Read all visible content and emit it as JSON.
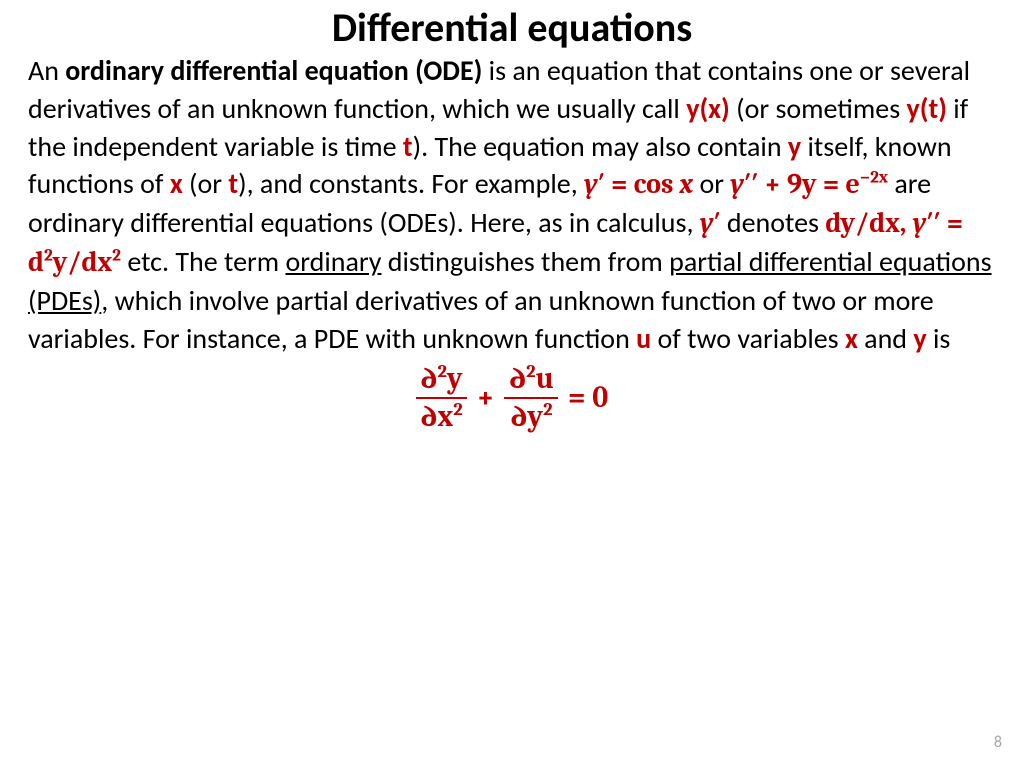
{
  "colors": {
    "red": "#c00000",
    "text": "#000000",
    "pagenum": "#a6a6a6",
    "background": "#ffffff"
  },
  "typography": {
    "title_fontsize": 40,
    "body_fontsize": 28,
    "eq_fontsize": 30,
    "pagenum_fontsize": 16,
    "body_line_height": 1.35
  },
  "page_number": "8",
  "title": "Differential equations",
  "body": {
    "t1": "An ",
    "bold_ode": "ordinary differential equation (ODE)",
    "t2": " is an equation that contains one or several derivatives of an unknown function, which we usually call ",
    "yx": "y(x)",
    "t3": " (or sometimes ",
    "yt": "y(t)",
    "t4": " if the independent variable is time ",
    "tvar": "t",
    "t5": "). The equation may also contain ",
    "yvar": "y",
    "t6": " itself, known functions of ",
    "xvar": "x",
    "t7": " (or ",
    "tvar2": "t",
    "t8": "), and constants. For example, ",
    "eq1_lhs": "y",
    "eq1_prime": "′",
    "eq1_eq": " = ",
    "eq1_cos": "cos ",
    "eq1_x": "x",
    "t9": " or ",
    "eq2_y": "y",
    "eq2_pp": "′′",
    "eq2_plus": " + 9y = e",
    "eq2_exp": "−2x",
    "t10": " are ordinary differential equations (ODEs). Here, as in calculus, ",
    "yprime": "y",
    "yprime_s": "′",
    "t11": " denotes ",
    "deriv": "dy/dx, ",
    "deriv_y": "y",
    "deriv_pp": "′′",
    "deriv_eq": " = d",
    "deriv_sup2a": "2",
    "deriv_mid": "y/dx",
    "deriv_sup2b": "2",
    "t12": " etc. The term ",
    "ordinary": "ordinary",
    "t13": " distinguishes them from ",
    "pde": "partial differential equations (PDEs)",
    "t14": ", which involve partial derivatives of an unknown function of two or more variables. For instance, a PDE with unknown function ",
    "uvar": "u",
    "t15": " of two variables ",
    "xvar2": "x",
    "t16": " and ",
    "yvar2": "y",
    "t17": " is"
  },
  "equation": {
    "f1_num_d": "∂",
    "f1_num_sup": "2",
    "f1_num_y": "y",
    "f1_den_d": "∂x",
    "f1_den_sup": "2",
    "plus": "+",
    "f2_num_d": "∂",
    "f2_num_sup": "2",
    "f2_num_u": "u",
    "f2_den_d": "∂y",
    "f2_den_sup": "2",
    "eqzero": "= 0"
  }
}
